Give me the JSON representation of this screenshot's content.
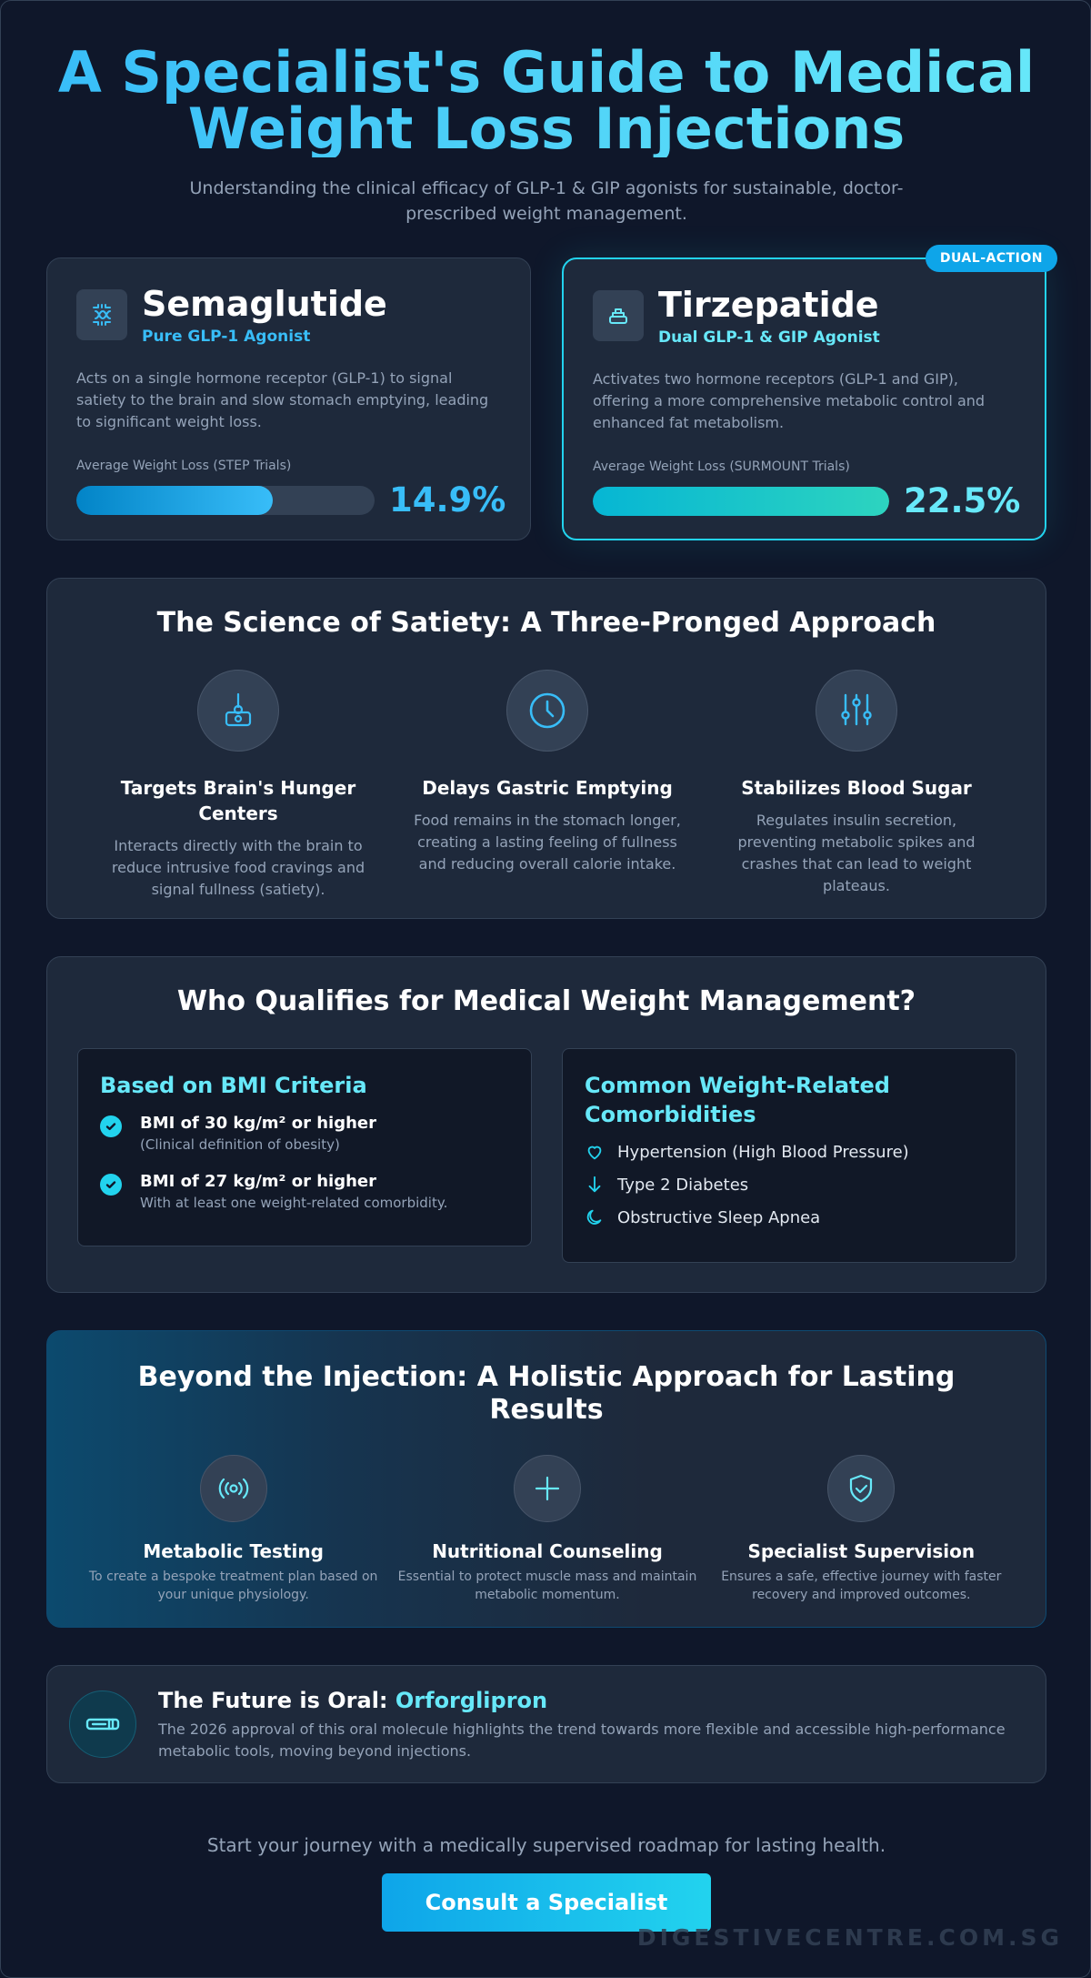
{
  "hero": {
    "title": "A Specialist's Guide to Medical Weight Loss Injections",
    "subtitle": "Understanding the clinical efficacy of GLP-1 & GIP agonists for sustainable, doctor-prescribed weight management."
  },
  "drugs": [
    {
      "name": "Semaglutide",
      "subtitle": "Pure GLP-1 Agonist",
      "icon": "dna-icon",
      "description": "Acts on a single hormone receptor (GLP-1) to signal satiety to the brain and slow stomach emptying, leading to significant weight loss.",
      "trial_label": "Average Weight Loss (STEP Trials)",
      "weight_loss": "14.9%",
      "bar_fraction": 0.66
    },
    {
      "name": "Tirzepatide",
      "subtitle": "Dual GLP-1 & GIP Agonist",
      "icon": "stacked-layers-icon",
      "badge": "DUAL-ACTION",
      "description": "Activates two hormone receptors (GLP-1 and GIP), offering a more comprehensive metabolic control and enhanced fat metabolism.",
      "trial_label": "Average Weight Loss (SURMOUNT Trials)",
      "weight_loss": "22.5%",
      "bar_fraction": 1.0
    }
  ],
  "science": {
    "title": "The Science of Satiety: A Three-Pronged Approach",
    "pillars": [
      {
        "icon": "brain-hook-icon",
        "title": "Targets Brain's Hunger Centers",
        "text": "Interacts directly with the brain to reduce intrusive food cravings and signal fullness (satiety)."
      },
      {
        "icon": "clock-icon",
        "title": "Delays Gastric Emptying",
        "text": "Food remains in the stomach longer, creating a lasting feeling of fullness and reducing overall calorie intake."
      },
      {
        "icon": "sliders-icon",
        "title": "Stabilizes Blood Sugar",
        "text": "Regulates insulin secretion, preventing metabolic spikes and crashes that can lead to weight plateaus."
      }
    ]
  },
  "qualify": {
    "title": "Who Qualifies for Medical Weight Management?",
    "bmi": {
      "heading": "Based on BMI Criteria",
      "items": [
        {
          "main": "BMI of 30 kg/m² or higher",
          "note": "(Clinical definition of obesity)"
        },
        {
          "main": "BMI of 27 kg/m² or higher",
          "note": "With at least one weight-related comorbidity."
        }
      ]
    },
    "comorbidities": {
      "heading": "Common Weight-Related Comorbidities",
      "items": [
        {
          "icon": "heart-icon",
          "label": "Hypertension (High Blood Pressure)"
        },
        {
          "icon": "arrow-down-icon",
          "label": "Type 2 Diabetes"
        },
        {
          "icon": "moon-icon",
          "label": "Obstructive Sleep Apnea"
        }
      ]
    }
  },
  "holistic": {
    "title": "Beyond the Injection: A Holistic Approach for Lasting Results",
    "items": [
      {
        "icon": "signal-icon",
        "title": "Metabolic Testing",
        "text": "To create a bespoke treatment plan based on your unique physiology."
      },
      {
        "icon": "plus-icon",
        "title": "Nutritional Counseling",
        "text": "Essential to protect muscle mass and maintain metabolic momentum."
      },
      {
        "icon": "shield-check-icon",
        "title": "Specialist Supervision",
        "text": "Ensures a safe, effective journey with faster recovery and improved outcomes."
      }
    ]
  },
  "future": {
    "icon": "pill-icon",
    "title_prefix": "The Future is Oral: ",
    "title_highlight": "Orforglipron",
    "description": "The 2026 approval of this oral molecule highlights the trend towards more flexible and accessible high-performance metabolic tools, moving beyond injections."
  },
  "cta": {
    "text": "Start your journey with a medically supervised roadmap for lasting health.",
    "button": "Consult a Specialist"
  },
  "watermark": "DIGESTIVECENTRE.COM.SG",
  "colors": {
    "background": "#0f172a",
    "card": "#1e293b",
    "accent_blue": "#38bdf8",
    "accent_cyan": "#67e8f9",
    "muted_text": "#94a3b8"
  }
}
